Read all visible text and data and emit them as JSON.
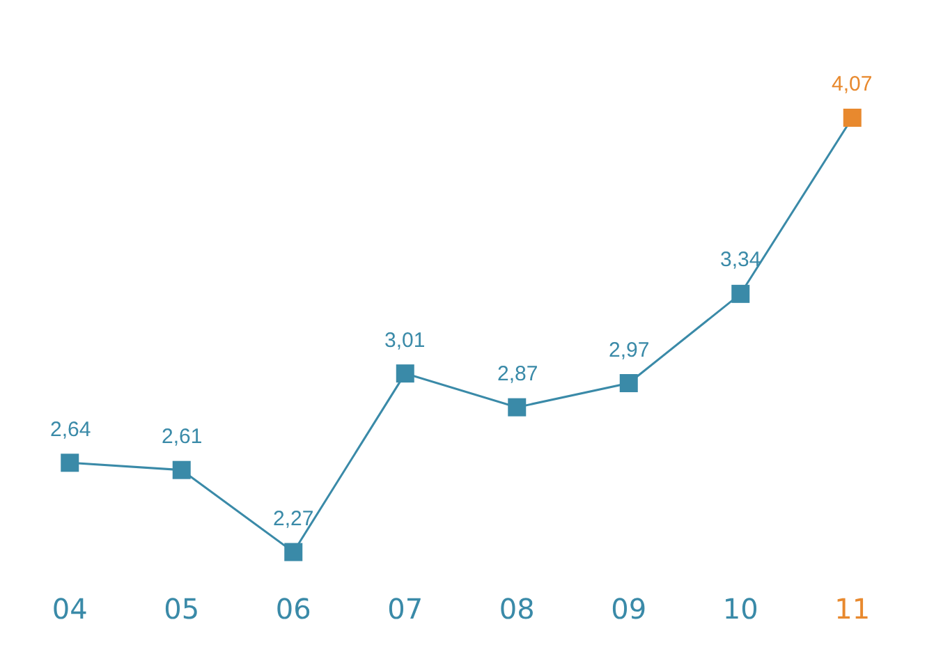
{
  "chart_data": {
    "type": "line",
    "categories": [
      "04",
      "05",
      "06",
      "07",
      "08",
      "09",
      "10",
      "11"
    ],
    "values": [
      2.64,
      2.61,
      2.27,
      3.01,
      2.87,
      2.97,
      3.34,
      4.07
    ],
    "value_labels": [
      "2,64",
      "2,61",
      "2,27",
      "3,01",
      "2,87",
      "2,97",
      "3,34",
      "4,07"
    ],
    "color": "#3a8aa8",
    "colors": [
      "#3a8aa8",
      "#3a8aa8",
      "#3a8aa8",
      "#3a8aa8",
      "#3a8aa8",
      "#3a8aa8",
      "#3a8aa8",
      "#e8892e"
    ],
    "marker": "square"
  }
}
